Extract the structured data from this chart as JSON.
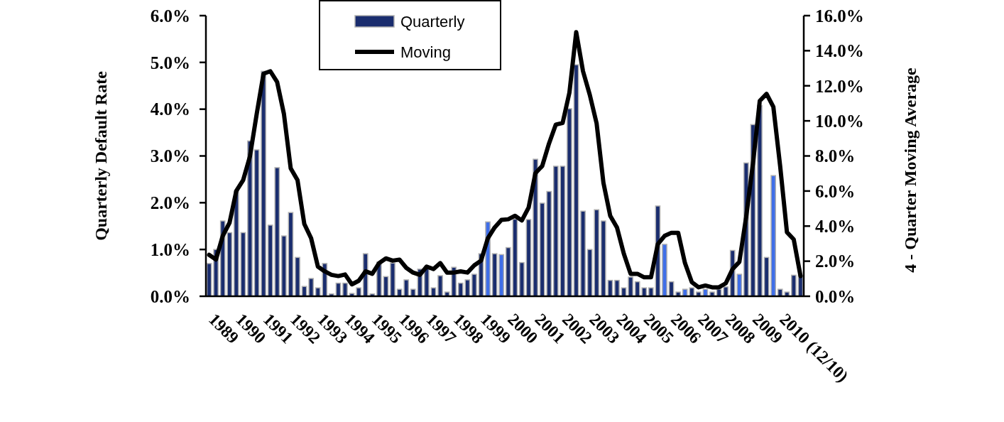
{
  "chart_data": {
    "type": "bar",
    "ylabel": "Quarterly Default Rate",
    "y2label": "4 - Quarter Moving Average",
    "legend": "top",
    "tick_labels": "xy",
    "categories": [
      "1989",
      null,
      null,
      null,
      "1990",
      null,
      null,
      null,
      "1991",
      null,
      null,
      null,
      "1992",
      null,
      null,
      null,
      "1993",
      null,
      null,
      null,
      "1994",
      null,
      null,
      null,
      "1995",
      null,
      null,
      null,
      "1996",
      null,
      null,
      null,
      "1997",
      null,
      null,
      null,
      "1998",
      null,
      null,
      null,
      "1999",
      null,
      null,
      null,
      "2000",
      null,
      null,
      null,
      "2001",
      null,
      null,
      null,
      "2002",
      null,
      null,
      null,
      "2003",
      null,
      null,
      null,
      "2004",
      null,
      null,
      null,
      "2005",
      null,
      null,
      null,
      "2006",
      null,
      null,
      null,
      "2007",
      null,
      null,
      null,
      "2008",
      null,
      null,
      null,
      "2009",
      null,
      null,
      null,
      "2010 (12/10)",
      null,
      null,
      null
    ],
    "ylim": [
      0,
      6
    ],
    "yticks": [
      {
        "value": 0,
        "label": "0.0%"
      },
      {
        "value": 1,
        "label": "1.0%"
      },
      {
        "value": 2,
        "label": "2.0%"
      },
      {
        "value": 3,
        "label": "3.0%"
      },
      {
        "value": 4,
        "label": "4.0%"
      },
      {
        "value": 5,
        "label": "5.0%"
      },
      {
        "value": 6,
        "label": "6.0%"
      }
    ],
    "y2lim": [
      0,
      16
    ],
    "y2ticks": [
      {
        "value": 0,
        "label": "0.0%"
      },
      {
        "value": 2,
        "label": "2.0%"
      },
      {
        "value": 4,
        "label": "4.0%"
      },
      {
        "value": 6,
        "label": "6.0%"
      },
      {
        "value": 8,
        "label": "8.0%"
      },
      {
        "value": 10,
        "label": "10.0%"
      },
      {
        "value": 12,
        "label": "12.0%"
      },
      {
        "value": 14,
        "label": "14.0%"
      },
      {
        "value": 16,
        "label": "16.0%"
      }
    ],
    "series": [
      {
        "name": "Quarterly",
        "color": "#1a2d6e",
        "colors": [
          "#1a2d6e",
          "#1a2d6e",
          "#1a2d6e",
          "#1a2d6e",
          "#1a2d6e",
          "#1a2d6e",
          "#1a2d6e",
          "#1a2d6e",
          "#1a2d6e",
          "#1a2d6e",
          "#1a2d6e",
          "#1a2d6e",
          "#1a2d6e",
          "#1a2d6e",
          "#1a2d6e",
          "#1a2d6e",
          "#1a2d6e",
          "#1a2d6e",
          "#1a2d6e",
          "#1a2d6e",
          "#1a2d6e",
          "#1a2d6e",
          "#1a2d6e",
          "#1a2d6e",
          "#1a2d6e",
          "#1a2d6e",
          "#1a2d6e",
          "#1a2d6e",
          "#1a2d6e",
          "#1a2d6e",
          "#1a2d6e",
          "#1a2d6e",
          "#1a2d6e",
          "#1a2d6e",
          "#1a2d6e",
          "#1a2d6e",
          "#1a2d6e",
          "#1a2d6e",
          "#1a2d6e",
          "#1a2d6e",
          "#1a2d6e",
          "#3f6ee8",
          "#1a2d6e",
          "#3f6ee8",
          "#1a2d6e",
          "#1a2d6e",
          "#1a2d6e",
          "#1a2d6e",
          "#1a2d6e",
          "#1a2d6e",
          "#1a2d6e",
          "#1a2d6e",
          "#1a2d6e",
          "#1a2d6e",
          "#1a2d6e",
          "#1a2d6e",
          "#1a2d6e",
          "#1a2d6e",
          "#1a2d6e",
          "#1a2d6e",
          "#1a2d6e",
          "#1a2d6e",
          "#1a2d6e",
          "#1a2d6e",
          "#1a2d6e",
          "#1a2d6e",
          "#1a2d6e",
          "#3f6ee8",
          "#1a2d6e",
          "#1a2d6e",
          "#3f6ee8",
          "#1a2d6e",
          "#1a2d6e",
          "#3f6ee8",
          "#1a2d6e",
          "#1a2d6e",
          "#1a2d6e",
          "#1a2d6e",
          "#3f6ee8",
          "#1a2d6e",
          "#1a2d6e",
          "#1a2d6e",
          "#1a2d6e",
          "#3f6ee8",
          "#1a2d6e",
          "#1a2d6e",
          "#1a2d6e",
          "#1a2d6e"
        ],
        "values": [
          0.7,
          1.0,
          1.61,
          1.36,
          2.25,
          1.36,
          3.32,
          3.13,
          4.81,
          1.52,
          2.75,
          1.29,
          1.79,
          0.83,
          0.21,
          0.38,
          0.18,
          0.7,
          0.05,
          0.28,
          0.28,
          0.06,
          0.18,
          0.91,
          0.05,
          0.73,
          0.42,
          0.71,
          0.15,
          0.35,
          0.15,
          0.58,
          0.63,
          0.18,
          0.44,
          0.09,
          0.62,
          0.28,
          0.35,
          0.47,
          0.91,
          1.59,
          0.91,
          0.89,
          1.04,
          1.65,
          0.72,
          1.64,
          2.93,
          1.99,
          2.24,
          2.78,
          2.78,
          4.01,
          4.95,
          1.82,
          1.0,
          1.85,
          1.61,
          0.34,
          0.34,
          0.18,
          0.41,
          0.31,
          0.18,
          0.18,
          1.93,
          1.11,
          0.31,
          0.09,
          0.15,
          0.18,
          0.09,
          0.15,
          0.09,
          0.15,
          0.2,
          0.98,
          0.47,
          2.85,
          3.67,
          4.08,
          0.83,
          2.58,
          0.15,
          0.09,
          0.45,
          0.45
        ]
      },
      {
        "name": "Moving",
        "type": "line",
        "axis": "y2",
        "color": "#000000",
        "values": [
          2.36,
          2.09,
          3.44,
          4.19,
          6.01,
          6.62,
          7.97,
          10.4,
          12.69,
          12.83,
          12.22,
          10.4,
          7.29,
          6.62,
          4.12,
          3.31,
          1.69,
          1.42,
          1.22,
          1.15,
          1.24,
          0.68,
          0.88,
          1.42,
          1.28,
          1.89,
          2.16,
          2.03,
          2.09,
          1.62,
          1.35,
          1.22,
          1.69,
          1.55,
          1.89,
          1.35,
          1.35,
          1.42,
          1.35,
          1.76,
          2.03,
          3.31,
          3.92,
          4.35,
          4.39,
          4.59,
          4.32,
          5.06,
          7.02,
          7.43,
          8.71,
          9.79,
          9.88,
          11.61,
          15.06,
          12.83,
          11.48,
          9.86,
          6.48,
          4.59,
          3.92,
          2.43,
          1.28,
          1.28,
          1.08,
          1.08,
          2.97,
          3.44,
          3.62,
          3.62,
          1.89,
          0.81,
          0.51,
          0.61,
          0.51,
          0.51,
          0.74,
          1.55,
          1.96,
          4.52,
          7.56,
          11.14,
          11.54,
          10.8,
          7.43,
          3.65,
          3.24,
          1.15
        ]
      }
    ]
  }
}
